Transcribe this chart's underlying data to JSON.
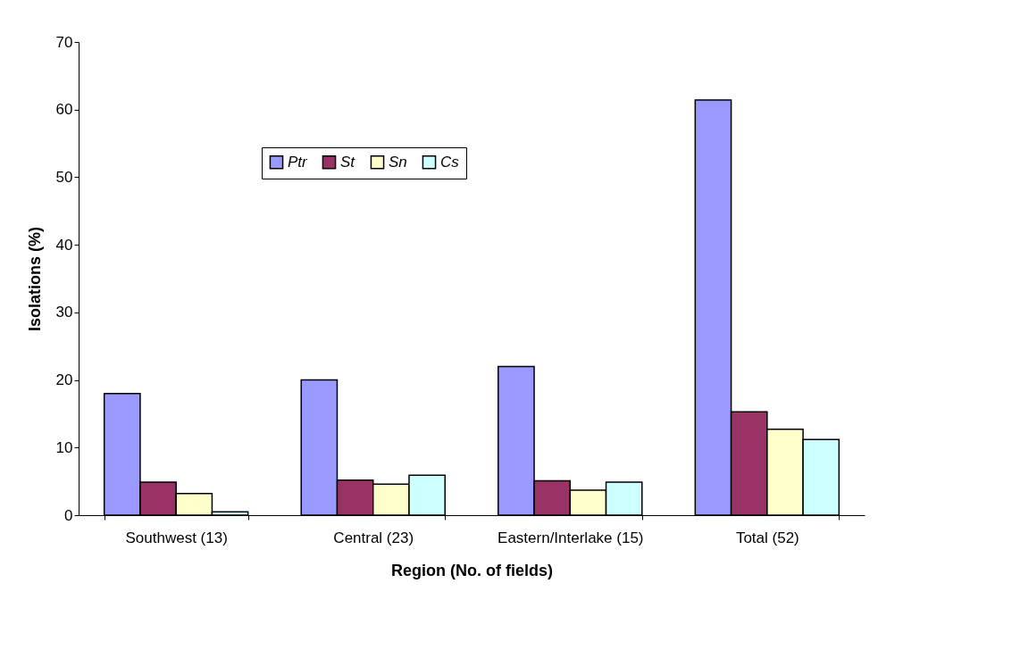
{
  "chart_data": {
    "type": "bar",
    "xlabel": "Region (No. of fields)",
    "ylabel": "Isolations (%)",
    "categories": [
      "Southwest (13)",
      "Central (23)",
      "Eastern/Interlake (15)",
      "Total (52)"
    ],
    "series": [
      {
        "name": "Ptr",
        "color": "#9999ff",
        "values": [
          18,
          20,
          22,
          61.4
        ]
      },
      {
        "name": "St",
        "color": "#993366",
        "values": [
          4.9,
          5.2,
          5.1,
          15.3
        ]
      },
      {
        "name": "Sn",
        "color": "#ffffcc",
        "values": [
          3.2,
          4.6,
          3.7,
          12.7
        ]
      },
      {
        "name": "Cs",
        "color": "#ccffff",
        "values": [
          0.5,
          5.9,
          4.9,
          11.2
        ]
      }
    ],
    "ylim": [
      0,
      70
    ],
    "yticks": [
      0,
      10,
      20,
      30,
      40,
      50,
      60,
      70
    ],
    "grid": false,
    "legend": "top left"
  }
}
